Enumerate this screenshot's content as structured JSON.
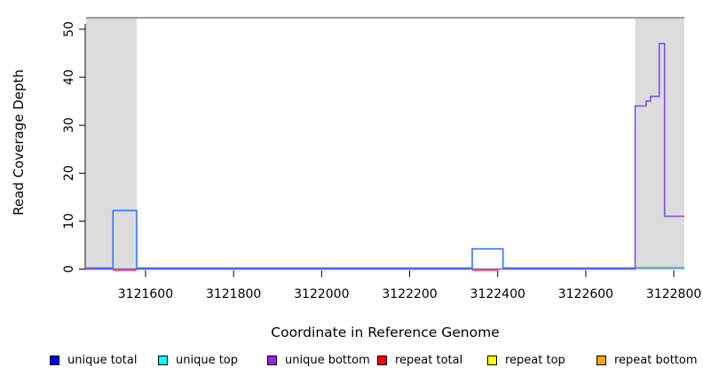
{
  "figure": {
    "ylabel": "Read Coverage Depth",
    "xlabel": "Coordinate in Reference Genome"
  },
  "legend": {
    "items": [
      {
        "label": "unique total",
        "color": "#0000FF"
      },
      {
        "label": "unique top",
        "color": "#00FFFF"
      },
      {
        "label": "unique bottom",
        "color": "#A020F0"
      },
      {
        "label": "repeat total",
        "color": "#FF0000"
      },
      {
        "label": "repeat top",
        "color": "#FFFF00"
      },
      {
        "label": "repeat bottom",
        "color": "#FFA500"
      }
    ]
  },
  "chart_data": {
    "type": "line",
    "title": "",
    "xlabel": "Coordinate in Reference Genome",
    "ylabel": "Read Coverage Depth",
    "xlim": [
      3121465,
      3122824
    ],
    "ylim": [
      0,
      52.4
    ],
    "xticks": [
      3121600,
      3121800,
      3122000,
      3122200,
      3122400,
      3122600,
      3122800
    ],
    "yticks": [
      0,
      10,
      20,
      30,
      40,
      50
    ],
    "grid": false,
    "legend_position": "bottom",
    "shaded_regions": {
      "color": "#DCDCDC",
      "border_color": "#9C9C9C",
      "regions": [
        [
          3121465,
          3121580
        ],
        [
          3122712,
          3122824
        ]
      ]
    },
    "series": [
      {
        "name": "unique total",
        "color": "#2E79FF",
        "segments": [
          [
            [
              3121465,
              0
            ],
            [
              3121526,
              0
            ],
            [
              3121526,
              12
            ],
            [
              3121580,
              12
            ],
            [
              3121580,
              0
            ],
            [
              3122342,
              0
            ],
            [
              3122342,
              4
            ],
            [
              3122412,
              4
            ],
            [
              3122412,
              0
            ],
            [
              3122824,
              0
            ]
          ]
        ]
      },
      {
        "name": "repeat total",
        "color": "#FF5050",
        "segments": [
          [
            [
              3121526,
              0
            ],
            [
              3121580,
              0
            ]
          ],
          [
            [
              3122342,
              0
            ],
            [
              3122402,
              0
            ]
          ]
        ]
      },
      {
        "name": "unique bottom",
        "color": "#7B4FE0",
        "segments": [
          [
            [
              3121465,
              0
            ],
            [
              3122712,
              0
            ],
            [
              3122712,
              34
            ],
            [
              3122737,
              34
            ],
            [
              3122737,
              35
            ],
            [
              3122747,
              35
            ],
            [
              3122747,
              36
            ],
            [
              3122767,
              36
            ],
            [
              3122767,
              47
            ],
            [
              3122779,
              47
            ],
            [
              3122779,
              11
            ],
            [
              3122824,
              11
            ]
          ]
        ]
      },
      {
        "name": "green baseline segment",
        "color": "#7ED47E",
        "segments": [
          [
            [
              3122714,
              0
            ],
            [
              3122824,
              0
            ]
          ]
        ]
      }
    ]
  }
}
